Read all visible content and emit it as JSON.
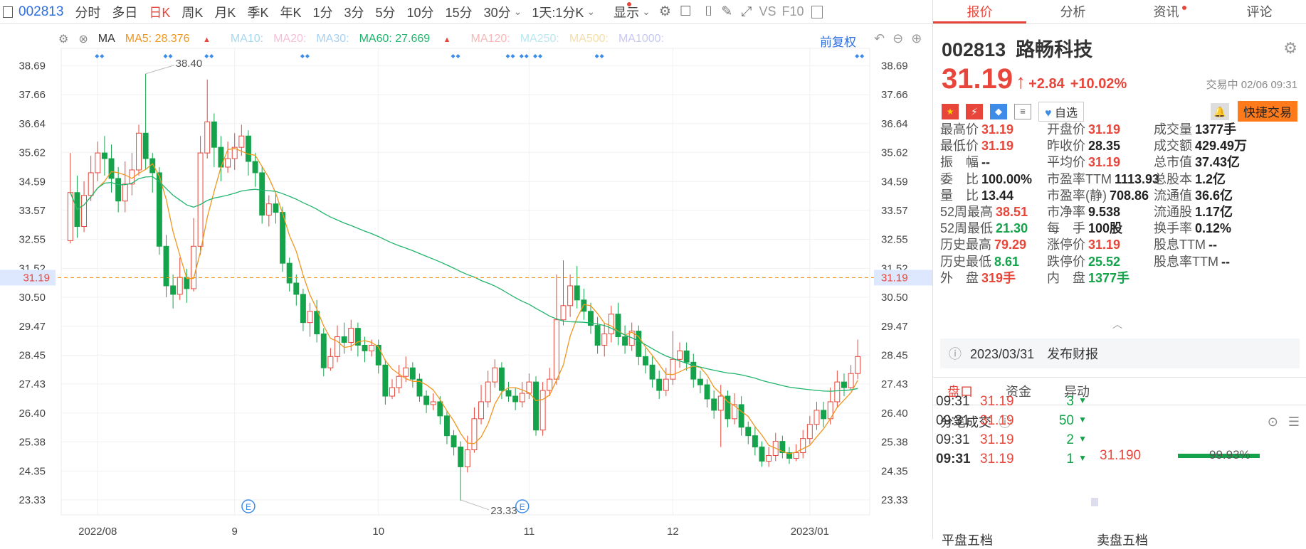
{
  "toolbar": {
    "code": "002813",
    "periods": [
      "分时",
      "多日",
      "日K",
      "周K",
      "月K",
      "季K",
      "年K",
      "1分",
      "3分",
      "5分",
      "10分",
      "15分",
      "30分"
    ],
    "active_period": "日K",
    "interval": "1天:1分K",
    "display": "显示",
    "vs": "VS",
    "f10": "F10"
  },
  "ma": {
    "label": "MA",
    "ma5": "MA5: 28.376",
    "ma10": "MA10:",
    "ma20": "MA20:",
    "ma30": "MA30:",
    "ma60": "MA60: 27.669",
    "ma120": "MA120:",
    "ma250": "MA250:",
    "ma500": "MA500:",
    "ma1000": "MA1000:",
    "adjust": "前复权",
    "colors": {
      "ma5": "#f0961e",
      "ma60": "#21b46d",
      "up": "#e8463a",
      "down": "#14a34b"
    }
  },
  "chart_data": {
    "type": "candlestick",
    "y_ticks": [
      "38.69",
      "37.66",
      "36.64",
      "35.62",
      "34.59",
      "33.57",
      "32.55",
      "31.52",
      "30.50",
      "29.47",
      "28.45",
      "27.43",
      "26.40",
      "25.38",
      "24.35",
      "23.33"
    ],
    "ylim": [
      22.8,
      39.3
    ],
    "current_price": "31.19",
    "x_ticks": [
      "2022/08",
      "9",
      "10",
      "11",
      "12",
      "2023/01"
    ],
    "annotations": [
      "38.40",
      "23.33"
    ],
    "candles": [
      [
        32.5,
        34.2,
        35.6,
        32.4
      ],
      [
        34.2,
        33.0,
        34.8,
        32.6
      ],
      [
        33.0,
        34.1,
        34.6,
        32.8
      ],
      [
        34.1,
        34.9,
        35.5,
        33.9
      ],
      [
        34.9,
        35.6,
        36.0,
        34.6
      ],
      [
        35.6,
        35.4,
        36.2,
        34.8
      ],
      [
        35.4,
        34.7,
        35.9,
        34.2
      ],
      [
        34.7,
        33.9,
        35.1,
        33.5
      ],
      [
        33.9,
        34.5,
        35.3,
        33.5
      ],
      [
        34.5,
        35.0,
        35.6,
        34.1
      ],
      [
        35.0,
        36.3,
        36.6,
        34.8
      ],
      [
        36.3,
        35.4,
        38.4,
        35.0
      ],
      [
        35.4,
        34.9,
        35.6,
        34.2
      ],
      [
        34.9,
        32.3,
        35.1,
        32.0
      ],
      [
        32.3,
        30.9,
        32.7,
        30.5
      ],
      [
        30.9,
        30.6,
        31.3,
        30.1
      ],
      [
        30.6,
        31.2,
        31.9,
        30.4
      ],
      [
        31.2,
        30.8,
        31.5,
        30.3
      ],
      [
        30.8,
        32.3,
        33.3,
        30.7
      ],
      [
        32.3,
        35.6,
        36.2,
        32.0
      ],
      [
        35.6,
        36.7,
        38.2,
        35.4
      ],
      [
        36.7,
        35.8,
        37.0,
        35.1
      ],
      [
        35.8,
        35.1,
        36.2,
        34.6
      ],
      [
        35.1,
        35.4,
        36.0,
        34.9
      ],
      [
        35.4,
        35.8,
        36.3,
        35.0
      ],
      [
        35.8,
        36.2,
        36.6,
        35.5
      ],
      [
        36.2,
        35.3,
        36.4,
        34.8
      ],
      [
        35.3,
        34.9,
        35.6,
        34.4
      ],
      [
        34.9,
        33.4,
        35.1,
        33.1
      ],
      [
        33.4,
        33.8,
        34.1,
        33.0
      ],
      [
        33.8,
        33.5,
        34.2,
        33.1
      ],
      [
        33.5,
        31.7,
        33.7,
        31.4
      ],
      [
        31.7,
        31.0,
        31.9,
        30.7
      ],
      [
        31.0,
        30.6,
        31.3,
        30.2
      ],
      [
        30.6,
        29.6,
        30.8,
        29.3
      ],
      [
        29.6,
        30.0,
        30.3,
        29.1
      ],
      [
        30.0,
        29.2,
        30.4,
        28.9
      ],
      [
        29.2,
        28.0,
        29.4,
        27.7
      ],
      [
        28.0,
        28.4,
        28.7,
        27.9
      ],
      [
        28.4,
        29.1,
        29.5,
        28.2
      ],
      [
        29.1,
        28.9,
        29.6,
        28.5
      ],
      [
        28.9,
        29.4,
        29.7,
        28.6
      ],
      [
        29.4,
        28.8,
        29.6,
        28.4
      ],
      [
        28.8,
        28.6,
        29.1,
        28.2
      ],
      [
        28.6,
        28.8,
        29.0,
        28.4
      ],
      [
        28.8,
        28.1,
        29.0,
        27.8
      ],
      [
        28.1,
        27.0,
        28.3,
        26.7
      ],
      [
        27.0,
        27.3,
        27.6,
        26.9
      ],
      [
        27.3,
        27.7,
        28.1,
        27.1
      ],
      [
        27.7,
        28.0,
        28.4,
        27.5
      ],
      [
        28.0,
        27.6,
        28.2,
        27.3
      ],
      [
        27.6,
        27.0,
        27.8,
        26.8
      ],
      [
        27.0,
        26.7,
        27.2,
        26.4
      ],
      [
        26.7,
        26.8,
        27.1,
        26.5
      ],
      [
        26.8,
        26.3,
        27.0,
        26.0
      ],
      [
        26.3,
        25.6,
        26.5,
        25.3
      ],
      [
        25.6,
        25.2,
        25.8,
        24.9
      ],
      [
        25.2,
        24.5,
        25.4,
        23.3
      ],
      [
        24.5,
        25.1,
        25.6,
        24.3
      ],
      [
        25.1,
        26.2,
        26.6,
        25.0
      ],
      [
        26.2,
        26.8,
        27.4,
        26.0
      ],
      [
        26.8,
        27.5,
        27.9,
        26.6
      ],
      [
        27.5,
        28.0,
        28.3,
        27.3
      ],
      [
        28.0,
        27.2,
        28.2,
        26.9
      ],
      [
        27.2,
        27.0,
        27.5,
        26.8
      ],
      [
        27.0,
        26.8,
        27.3,
        26.5
      ],
      [
        26.8,
        27.1,
        27.5,
        26.6
      ],
      [
        27.1,
        27.5,
        27.8,
        26.9
      ],
      [
        27.5,
        25.8,
        27.7,
        25.6
      ],
      [
        25.8,
        27.2,
        27.5,
        25.6
      ],
      [
        27.2,
        27.6,
        28.0,
        27.0
      ],
      [
        27.6,
        29.7,
        31.3,
        27.4
      ],
      [
        29.7,
        30.2,
        31.8,
        29.5
      ],
      [
        30.2,
        30.9,
        31.3,
        29.8
      ],
      [
        30.9,
        30.4,
        31.6,
        30.1
      ],
      [
        30.4,
        30.0,
        30.8,
        29.7
      ],
      [
        30.0,
        29.5,
        30.3,
        29.2
      ],
      [
        29.5,
        28.8,
        29.8,
        28.5
      ],
      [
        28.8,
        29.2,
        29.6,
        28.4
      ],
      [
        29.2,
        29.9,
        30.2,
        28.9
      ],
      [
        29.9,
        29.1,
        30.3,
        28.8
      ],
      [
        29.1,
        28.8,
        29.5,
        28.5
      ],
      [
        28.8,
        29.3,
        29.6,
        28.6
      ],
      [
        29.3,
        28.4,
        29.5,
        28.1
      ],
      [
        28.4,
        28.1,
        28.7,
        27.8
      ],
      [
        28.1,
        27.6,
        28.4,
        27.3
      ],
      [
        27.6,
        27.2,
        27.9,
        26.9
      ],
      [
        27.2,
        27.6,
        28.0,
        27.0
      ],
      [
        27.6,
        28.3,
        29.3,
        27.4
      ],
      [
        28.3,
        28.6,
        28.9,
        28.0
      ],
      [
        28.6,
        28.2,
        28.9,
        27.9
      ],
      [
        28.2,
        27.6,
        28.5,
        27.3
      ],
      [
        27.6,
        27.4,
        27.9,
        27.1
      ],
      [
        27.4,
        26.9,
        27.6,
        26.6
      ],
      [
        26.9,
        26.5,
        27.2,
        26.2
      ],
      [
        26.5,
        27.0,
        27.4,
        25.2
      ],
      [
        27.0,
        26.2,
        27.2,
        25.9
      ],
      [
        26.2,
        26.7,
        27.1,
        26.0
      ],
      [
        26.7,
        25.9,
        27.0,
        25.6
      ],
      [
        25.9,
        25.6,
        26.1,
        25.3
      ],
      [
        25.6,
        25.2,
        25.9,
        24.9
      ],
      [
        25.2,
        24.7,
        25.4,
        24.5
      ],
      [
        24.7,
        24.9,
        25.2,
        24.5
      ],
      [
        24.9,
        25.4,
        25.7,
        24.7
      ],
      [
        25.4,
        25.0,
        25.6,
        24.8
      ],
      [
        25.0,
        24.8,
        25.2,
        24.6
      ],
      [
        24.8,
        25.0,
        25.3,
        24.7
      ],
      [
        25.0,
        25.5,
        25.8,
        24.8
      ],
      [
        25.5,
        26.0,
        26.3,
        25.3
      ],
      [
        26.0,
        26.5,
        26.8,
        25.8
      ],
      [
        26.5,
        26.2,
        26.8,
        25.9
      ],
      [
        26.2,
        26.8,
        27.3,
        26.0
      ],
      [
        26.8,
        27.5,
        27.9,
        26.6
      ],
      [
        27.5,
        27.3,
        27.8,
        27.0
      ],
      [
        27.3,
        27.8,
        28.1,
        27.2
      ],
      [
        27.8,
        28.4,
        29.0,
        27.6
      ]
    ]
  },
  "panel": {
    "tabs": [
      "报价",
      "分析",
      "资讯",
      "评论"
    ],
    "code": "002813",
    "name": "路畅科技",
    "price": "31.19",
    "arrow": "↑",
    "change": "+2.84",
    "pct": "+10.02%",
    "status": "交易中 02/06 09:31",
    "watch": "自选",
    "trade": "快捷交易",
    "stats": [
      [
        "最高价",
        "31.19",
        "red"
      ],
      [
        "开盘价",
        "31.19",
        "red"
      ],
      [
        "成交量",
        "1377手",
        "dark"
      ],
      [
        "最低价",
        "31.19",
        "red"
      ],
      [
        "昨收价",
        "28.35",
        "dark"
      ],
      [
        "成交额",
        "429.49万",
        "dark"
      ],
      [
        "振　幅",
        "--",
        "dark"
      ],
      [
        "平均价",
        "31.19",
        "red"
      ],
      [
        "总市值",
        "37.43亿",
        "dark"
      ],
      [
        "委　比",
        "100.00%",
        "dark"
      ],
      [
        "市盈率TTM",
        "1113.93",
        "dark"
      ],
      [
        "总股本",
        "1.2亿",
        "dark"
      ],
      [
        "量　比",
        "13.44",
        "dark"
      ],
      [
        "市盈率(静)",
        "708.86",
        "dark"
      ],
      [
        "流通值",
        "36.6亿",
        "dark"
      ],
      [
        "52周最高",
        "38.51",
        "red"
      ],
      [
        "市净率",
        "9.538",
        "dark"
      ],
      [
        "流通股",
        "1.17亿",
        "dark"
      ],
      [
        "52周最低",
        "21.30",
        "green"
      ],
      [
        "每　手",
        "100股",
        "dark"
      ],
      [
        "换手率",
        "0.12%",
        "dark"
      ],
      [
        "历史最高",
        "79.29",
        "red"
      ],
      [
        "涨停价",
        "31.19",
        "red"
      ],
      [
        "股息TTM",
        "--",
        "dark"
      ],
      [
        "历史最低",
        "8.61",
        "green"
      ],
      [
        "跌停价",
        "25.52",
        "green"
      ],
      [
        "股息率TTM",
        "--",
        "dark"
      ],
      [
        "外　盘",
        "319手",
        "red"
      ],
      [
        "内　盘",
        "1377手",
        "green"
      ]
    ],
    "notice": "2023/03/31　发布财报",
    "subtabs": [
      "盘口",
      "资金",
      "异动"
    ],
    "ticks_title": "分笔成交",
    "ticks": [
      [
        "09:31",
        "31.19",
        "3"
      ],
      [
        "09:31",
        "31.19",
        "50"
      ],
      [
        "09:31",
        "31.19",
        "2"
      ],
      [
        "09:31",
        "31.19",
        "1"
      ]
    ],
    "bar_price": "31.190",
    "bar_pct": "99.93%",
    "bottom": [
      "平盘五档",
      "卖盘五档"
    ]
  }
}
